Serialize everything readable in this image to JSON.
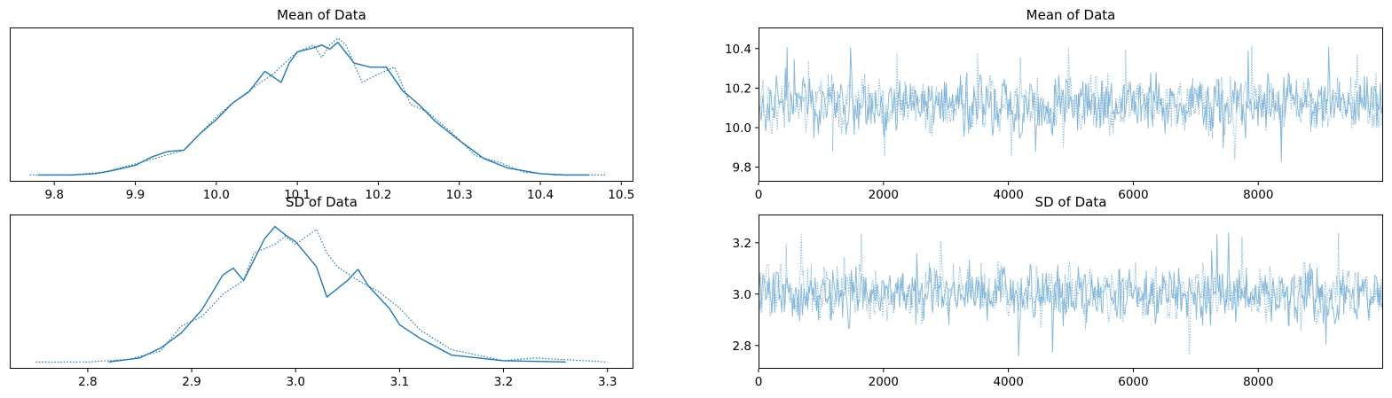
{
  "chart_data": [
    {
      "type": "line",
      "title": "Mean of Data",
      "xlabel": "",
      "ylabel": "",
      "xlim": [
        9.745,
        10.515
      ],
      "ylim": [
        0,
        1
      ],
      "xticks": [
        "9.8",
        "9.9",
        "10.0",
        "10.1",
        "10.2",
        "10.3",
        "10.4",
        "10.5"
      ],
      "xtick_values": [
        9.8,
        9.9,
        10.0,
        10.1,
        10.2,
        10.3,
        10.4,
        10.5
      ],
      "yticks_visible": false,
      "series": [
        {
          "style": "solid",
          "x": [
            9.78,
            9.82,
            9.85,
            9.87,
            9.9,
            9.92,
            9.94,
            9.96,
            9.98,
            10.0,
            10.02,
            10.04,
            10.06,
            10.08,
            10.09,
            10.1,
            10.12,
            10.13,
            10.14,
            10.15,
            10.17,
            10.19,
            10.21,
            10.23,
            10.25,
            10.27,
            10.3,
            10.33,
            10.36,
            10.4,
            10.43,
            10.46
          ],
          "y": [
            0.01,
            0.01,
            0.02,
            0.04,
            0.08,
            0.14,
            0.18,
            0.19,
            0.31,
            0.41,
            0.53,
            0.61,
            0.76,
            0.68,
            0.82,
            0.9,
            0.93,
            0.95,
            0.92,
            0.97,
            0.82,
            0.79,
            0.79,
            0.62,
            0.52,
            0.4,
            0.26,
            0.13,
            0.06,
            0.02,
            0.01,
            0.01
          ]
        },
        {
          "style": "dotted",
          "x": [
            9.77,
            9.82,
            9.86,
            9.9,
            9.93,
            9.96,
            9.98,
            10.0,
            10.02,
            10.05,
            10.07,
            10.09,
            10.1,
            10.12,
            10.13,
            10.14,
            10.15,
            10.16,
            10.18,
            10.2,
            10.22,
            10.24,
            10.26,
            10.29,
            10.32,
            10.35,
            10.38,
            10.42,
            10.48
          ],
          "y": [
            0.01,
            0.01,
            0.03,
            0.09,
            0.14,
            0.19,
            0.31,
            0.43,
            0.53,
            0.66,
            0.74,
            0.85,
            0.9,
            0.95,
            0.86,
            0.95,
            1.0,
            0.95,
            0.68,
            0.74,
            0.79,
            0.52,
            0.47,
            0.32,
            0.15,
            0.1,
            0.03,
            0.01,
            0.01
          ]
        }
      ]
    },
    {
      "type": "line",
      "title": "SD of Data",
      "xlabel": "",
      "ylabel": "",
      "xlim": [
        2.725,
        3.325
      ],
      "ylim": [
        0,
        1
      ],
      "xticks": [
        "2.8",
        "2.9",
        "3.0",
        "3.1",
        "3.2",
        "3.3"
      ],
      "xtick_values": [
        2.8,
        2.9,
        3.0,
        3.1,
        3.2,
        3.3
      ],
      "yticks_visible": false,
      "series": [
        {
          "style": "solid",
          "x": [
            2.82,
            2.85,
            2.87,
            2.89,
            2.91,
            2.93,
            2.94,
            2.95,
            2.97,
            2.98,
            2.99,
            3.0,
            3.02,
            3.03,
            3.04,
            3.05,
            3.06,
            3.07,
            3.08,
            3.09,
            3.1,
            3.12,
            3.15,
            3.2,
            3.26
          ],
          "y": [
            0.01,
            0.04,
            0.11,
            0.22,
            0.39,
            0.64,
            0.69,
            0.6,
            0.9,
            0.99,
            0.93,
            0.88,
            0.7,
            0.48,
            0.54,
            0.6,
            0.68,
            0.56,
            0.48,
            0.4,
            0.28,
            0.18,
            0.06,
            0.02,
            0.01
          ]
        },
        {
          "style": "dotted",
          "x": [
            2.75,
            2.8,
            2.84,
            2.87,
            2.89,
            2.91,
            2.93,
            2.95,
            2.96,
            2.98,
            2.99,
            3.0,
            3.02,
            3.03,
            3.04,
            3.05,
            3.06,
            3.08,
            3.1,
            3.12,
            3.15,
            3.2,
            3.23,
            3.3
          ],
          "y": [
            0.01,
            0.01,
            0.03,
            0.09,
            0.27,
            0.34,
            0.5,
            0.6,
            0.8,
            0.86,
            0.92,
            0.86,
            0.97,
            0.8,
            0.7,
            0.65,
            0.6,
            0.52,
            0.4,
            0.24,
            0.1,
            0.02,
            0.04,
            0.01
          ]
        }
      ]
    },
    {
      "type": "line",
      "title": "Mean of Data",
      "xlabel": "",
      "ylabel": "",
      "xlim": [
        0,
        9999
      ],
      "ylim": [
        9.74,
        10.52
      ],
      "xticks": [
        "0",
        "2000",
        "4000",
        "6000",
        "8000"
      ],
      "xtick_values": [
        0,
        2000,
        4000,
        6000,
        8000
      ],
      "yticks": [
        "9.8",
        "10.0",
        "10.2",
        "10.4"
      ],
      "ytick_values": [
        9.8,
        10.0,
        10.2,
        10.4
      ],
      "trace": {
        "n": 700,
        "center": 10.12,
        "spread": 0.1,
        "min": 9.78,
        "max": 10.48
      },
      "series": [
        {
          "style": "solid"
        },
        {
          "style": "dotted"
        }
      ]
    },
    {
      "type": "line",
      "title": "SD of Data",
      "xlabel": "",
      "ylabel": "",
      "xlim": [
        0,
        9999
      ],
      "ylim": [
        2.72,
        3.32
      ],
      "xticks": [
        "0",
        "2000",
        "4000",
        "6000",
        "8000"
      ],
      "xtick_values": [
        0,
        2000,
        4000,
        6000,
        8000
      ],
      "yticks": [
        "2.8",
        "3.0",
        "3.2"
      ],
      "ytick_values": [
        2.8,
        3.0,
        3.2
      ],
      "trace": {
        "n": 700,
        "center": 3.0,
        "spread": 0.08,
        "min": 2.75,
        "max": 3.3
      },
      "series": [
        {
          "style": "solid"
        },
        {
          "style": "dotted"
        }
      ]
    }
  ],
  "colors": {
    "kde_line": "#1f77b4",
    "trace_line": "#76aed6",
    "axes": "#000000"
  }
}
